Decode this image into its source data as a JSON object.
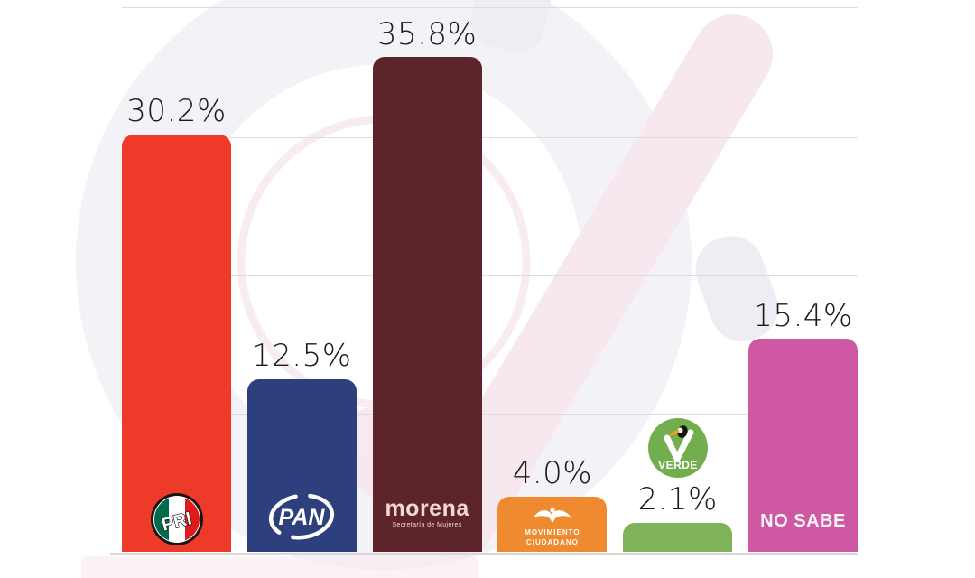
{
  "chart_data": {
    "type": "bar",
    "title": "",
    "categories": [
      "PRI",
      "PAN",
      "Morena",
      "Movimiento Ciudadano",
      "Partido Verde",
      "No sabe"
    ],
    "values": [
      30.2,
      12.5,
      35.8,
      4.0,
      2.1,
      15.4
    ],
    "value_labels": [
      "30.2%",
      "12.5%",
      "35.8%",
      "4.0%",
      "2.1%",
      "15.4%"
    ],
    "colors": [
      "#ee3a28",
      "#2d3f7d",
      "#5e242b",
      "#ef8a30",
      "#7eb457",
      "#ce58a3"
    ],
    "xlabel": "",
    "ylabel": "",
    "ylim": [
      0,
      39.5
    ],
    "gridlines_pct": [
      10,
      20,
      30
    ],
    "grid": true,
    "legend_position": "none (party logos drawn inside bars)"
  },
  "bars": {
    "pri": {
      "logo_text": "PRI"
    },
    "pan": {
      "logo_text": "PAN"
    },
    "morena": {
      "logo_text": "morena",
      "logo_subtext": "Secretaría de Mujeres"
    },
    "mc": {
      "logo_line1": "MOVIMIENTO",
      "logo_line2": "CIUDADANO"
    },
    "verde": {
      "logo_text": "VERDE"
    },
    "nosabe": {
      "label": "NO SABE"
    }
  },
  "style": {
    "background": "#ffffff",
    "gridline_color": "#dcdcdc",
    "label_color": "#1b1b1b",
    "watermark_pink": "#f7e7ee",
    "watermark_lavender": "#efedf4",
    "verde_circle_color": "#72ad4e",
    "pri_green": "#016a4b",
    "pri_red": "#e01a1d"
  },
  "layout_constants_note": "0% baseline at y=611px, 15.3px per percentage point"
}
